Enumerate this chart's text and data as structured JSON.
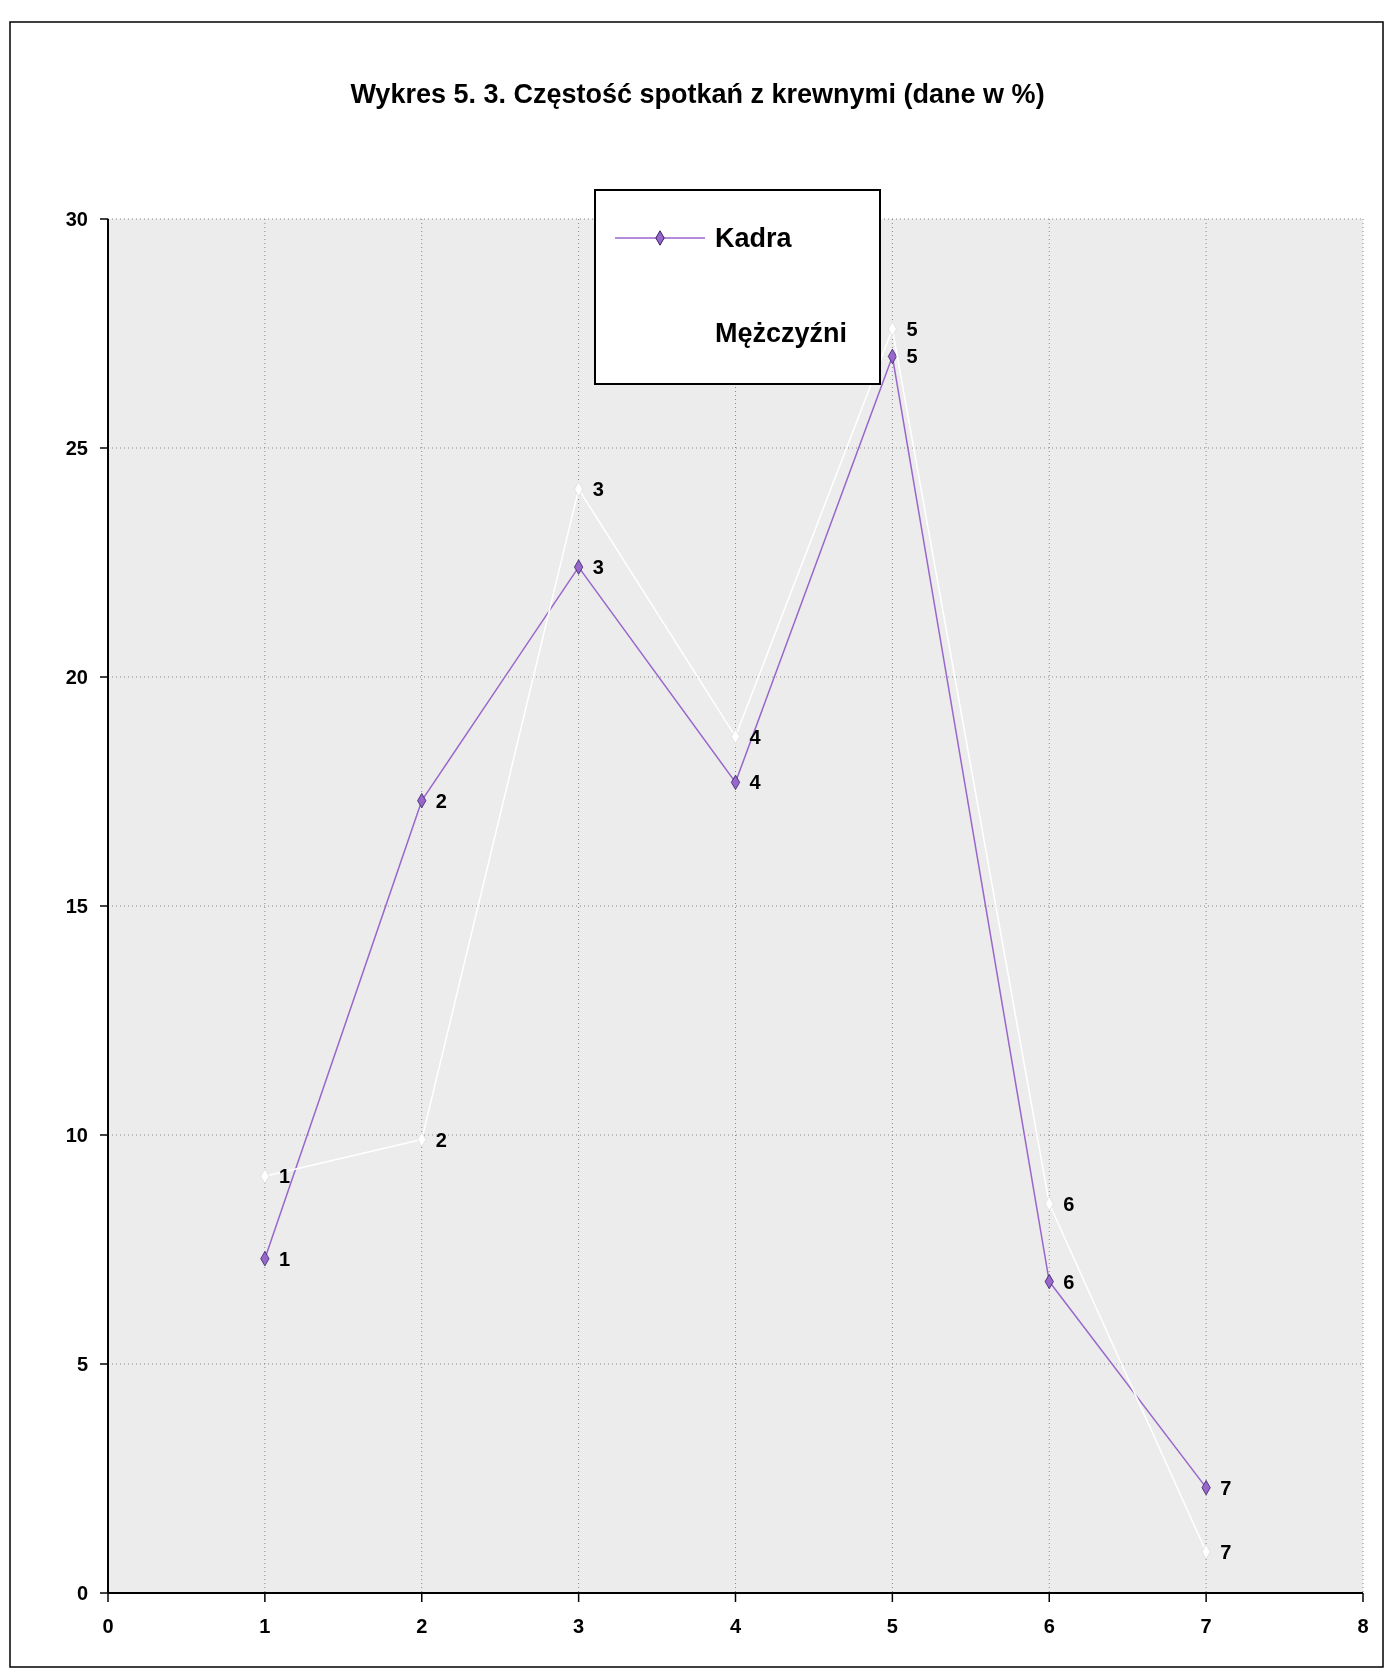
{
  "chart_data": {
    "type": "line",
    "title": "Wykres 5. 3. Częstość spotkań z krewnymi  (dane w %)",
    "x": [
      1,
      2,
      3,
      4,
      5,
      6,
      7
    ],
    "series": [
      {
        "name": "Kadra",
        "color": "#9966cc",
        "values": [
          7.3,
          17.3,
          22.4,
          17.7,
          27.0,
          6.8,
          2.3
        ]
      },
      {
        "name": "Mężczyźni",
        "color": "#ffffff",
        "values": [
          9.1,
          9.9,
          24.1,
          18.7,
          27.6,
          8.5,
          0.9
        ]
      }
    ],
    "annotations": [
      {
        "text": "1",
        "x": 1,
        "y": 7.3
      },
      {
        "text": "2",
        "x": 2,
        "y": 17.3
      },
      {
        "text": "3",
        "x": 3,
        "y": 22.4
      },
      {
        "text": "4",
        "x": 4,
        "y": 17.7
      },
      {
        "text": "5",
        "x": 5,
        "y": 27.0
      },
      {
        "text": "6",
        "x": 6,
        "y": 6.8
      },
      {
        "text": "7",
        "x": 7,
        "y": 2.3
      },
      {
        "text": "1",
        "x": 1,
        "y": 9.1
      },
      {
        "text": "2",
        "x": 2,
        "y": 9.9
      },
      {
        "text": "3",
        "x": 3,
        "y": 24.1
      },
      {
        "text": "4",
        "x": 4,
        "y": 18.7
      },
      {
        "text": "5",
        "x": 5,
        "y": 27.6
      },
      {
        "text": "6",
        "x": 6,
        "y": 8.5
      },
      {
        "text": "7",
        "x": 7,
        "y": 0.9
      }
    ],
    "xlim": [
      0,
      8
    ],
    "xticks": [
      0,
      1,
      2,
      3,
      4,
      5,
      6,
      7,
      8
    ],
    "ylim": [
      0,
      30
    ],
    "yticks": [
      0,
      5,
      10,
      15,
      20,
      25,
      30
    ],
    "grid": true,
    "legend": "top",
    "marker": "diamond",
    "line_style": "solid"
  }
}
